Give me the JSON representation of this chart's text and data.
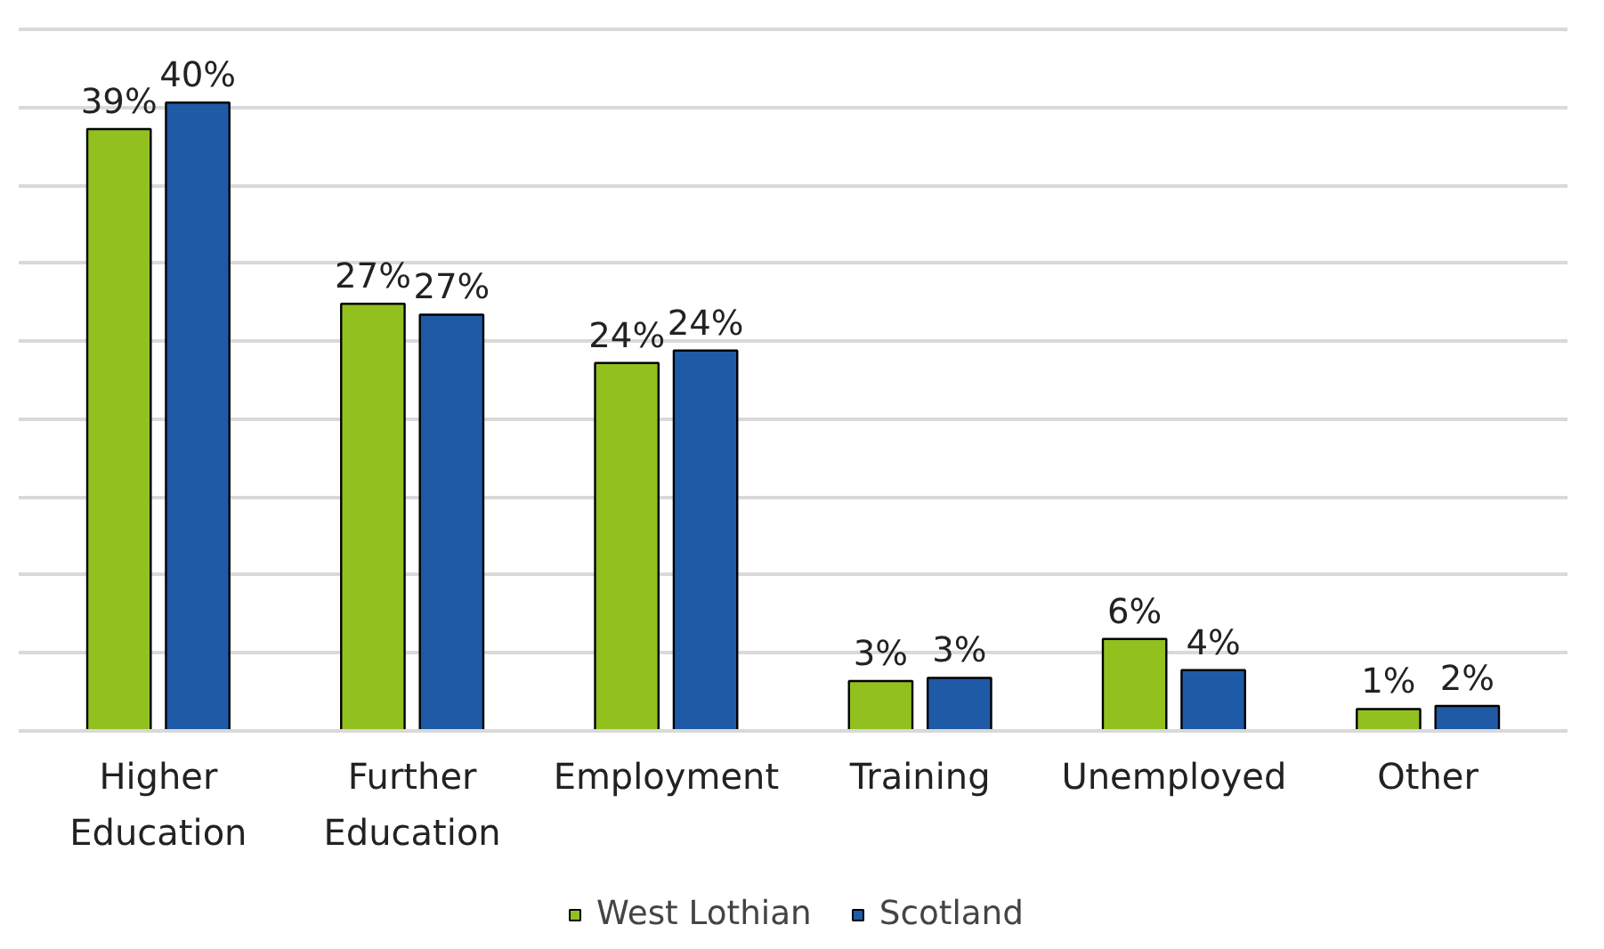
{
  "chart_data": {
    "type": "bar",
    "categories": [
      "Higher Education",
      "Further Education",
      "Employment",
      "Training",
      "Unemployed",
      "Other"
    ],
    "series": [
      {
        "name": "West Lothian",
        "color": "#92c01f",
        "values": [
          38.6,
          27.4,
          23.6,
          3.2,
          5.9,
          1.4
        ],
        "value_labels": [
          "39%",
          "27%",
          "24%",
          "3%",
          "6%",
          "1%"
        ]
      },
      {
        "name": "Scotland",
        "color": "#1f5aa6",
        "values": [
          40.3,
          26.7,
          24.4,
          3.4,
          3.9,
          1.6
        ],
        "value_labels": [
          "40%",
          "27%",
          "24%",
          "3%",
          "4%",
          "2%"
        ]
      }
    ],
    "yticks": [
      {
        "value": 0,
        "label": null
      },
      {
        "value": 5,
        "label": null
      },
      {
        "value": 10,
        "label": null
      },
      {
        "value": 15,
        "label": null
      },
      {
        "value": 20,
        "label": null
      },
      {
        "value": 25,
        "label": null
      },
      {
        "value": 30,
        "label": null
      },
      {
        "value": 35,
        "label": null
      },
      {
        "value": 40,
        "label": null
      },
      {
        "value": 45,
        "label": null
      }
    ],
    "grid": "y",
    "legend": "bottom",
    "tick_labels": "x"
  }
}
